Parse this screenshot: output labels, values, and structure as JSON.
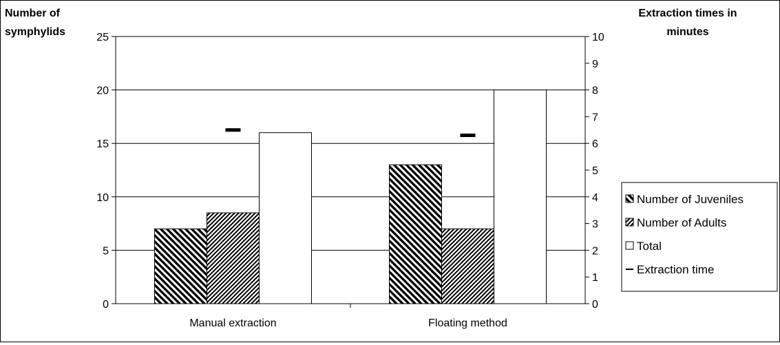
{
  "chart_data": {
    "type": "bar",
    "categories": [
      "Manual extraction",
      "Floating method"
    ],
    "series": [
      {
        "name": "Number of Juveniles",
        "values": [
          7,
          13
        ],
        "pattern": "diag-down"
      },
      {
        "name": "Number of Adults",
        "values": [
          8.5,
          7
        ],
        "pattern": "diag-up"
      },
      {
        "name": "Total",
        "values": [
          16,
          20
        ],
        "pattern": "none"
      }
    ],
    "line_series": {
      "name": "Extraction time",
      "values": [
        6.5,
        6.3
      ],
      "axis": "secondary"
    },
    "ylabel_lines": [
      "Number of",
      "symphylids"
    ],
    "y2label_lines": [
      "Extraction times in",
      "minutes"
    ],
    "ylim": [
      0,
      25
    ],
    "y2lim": [
      0,
      10
    ],
    "yticks": [
      0,
      5,
      10,
      15,
      20,
      25
    ],
    "y2ticks": [
      0,
      1,
      2,
      3,
      4,
      5,
      6,
      7,
      8,
      9,
      10
    ],
    "grid": "horizontal major lines",
    "legend_position": "right",
    "colors": {
      "bar_fill": "#ffffff",
      "stroke": "#000000"
    }
  }
}
